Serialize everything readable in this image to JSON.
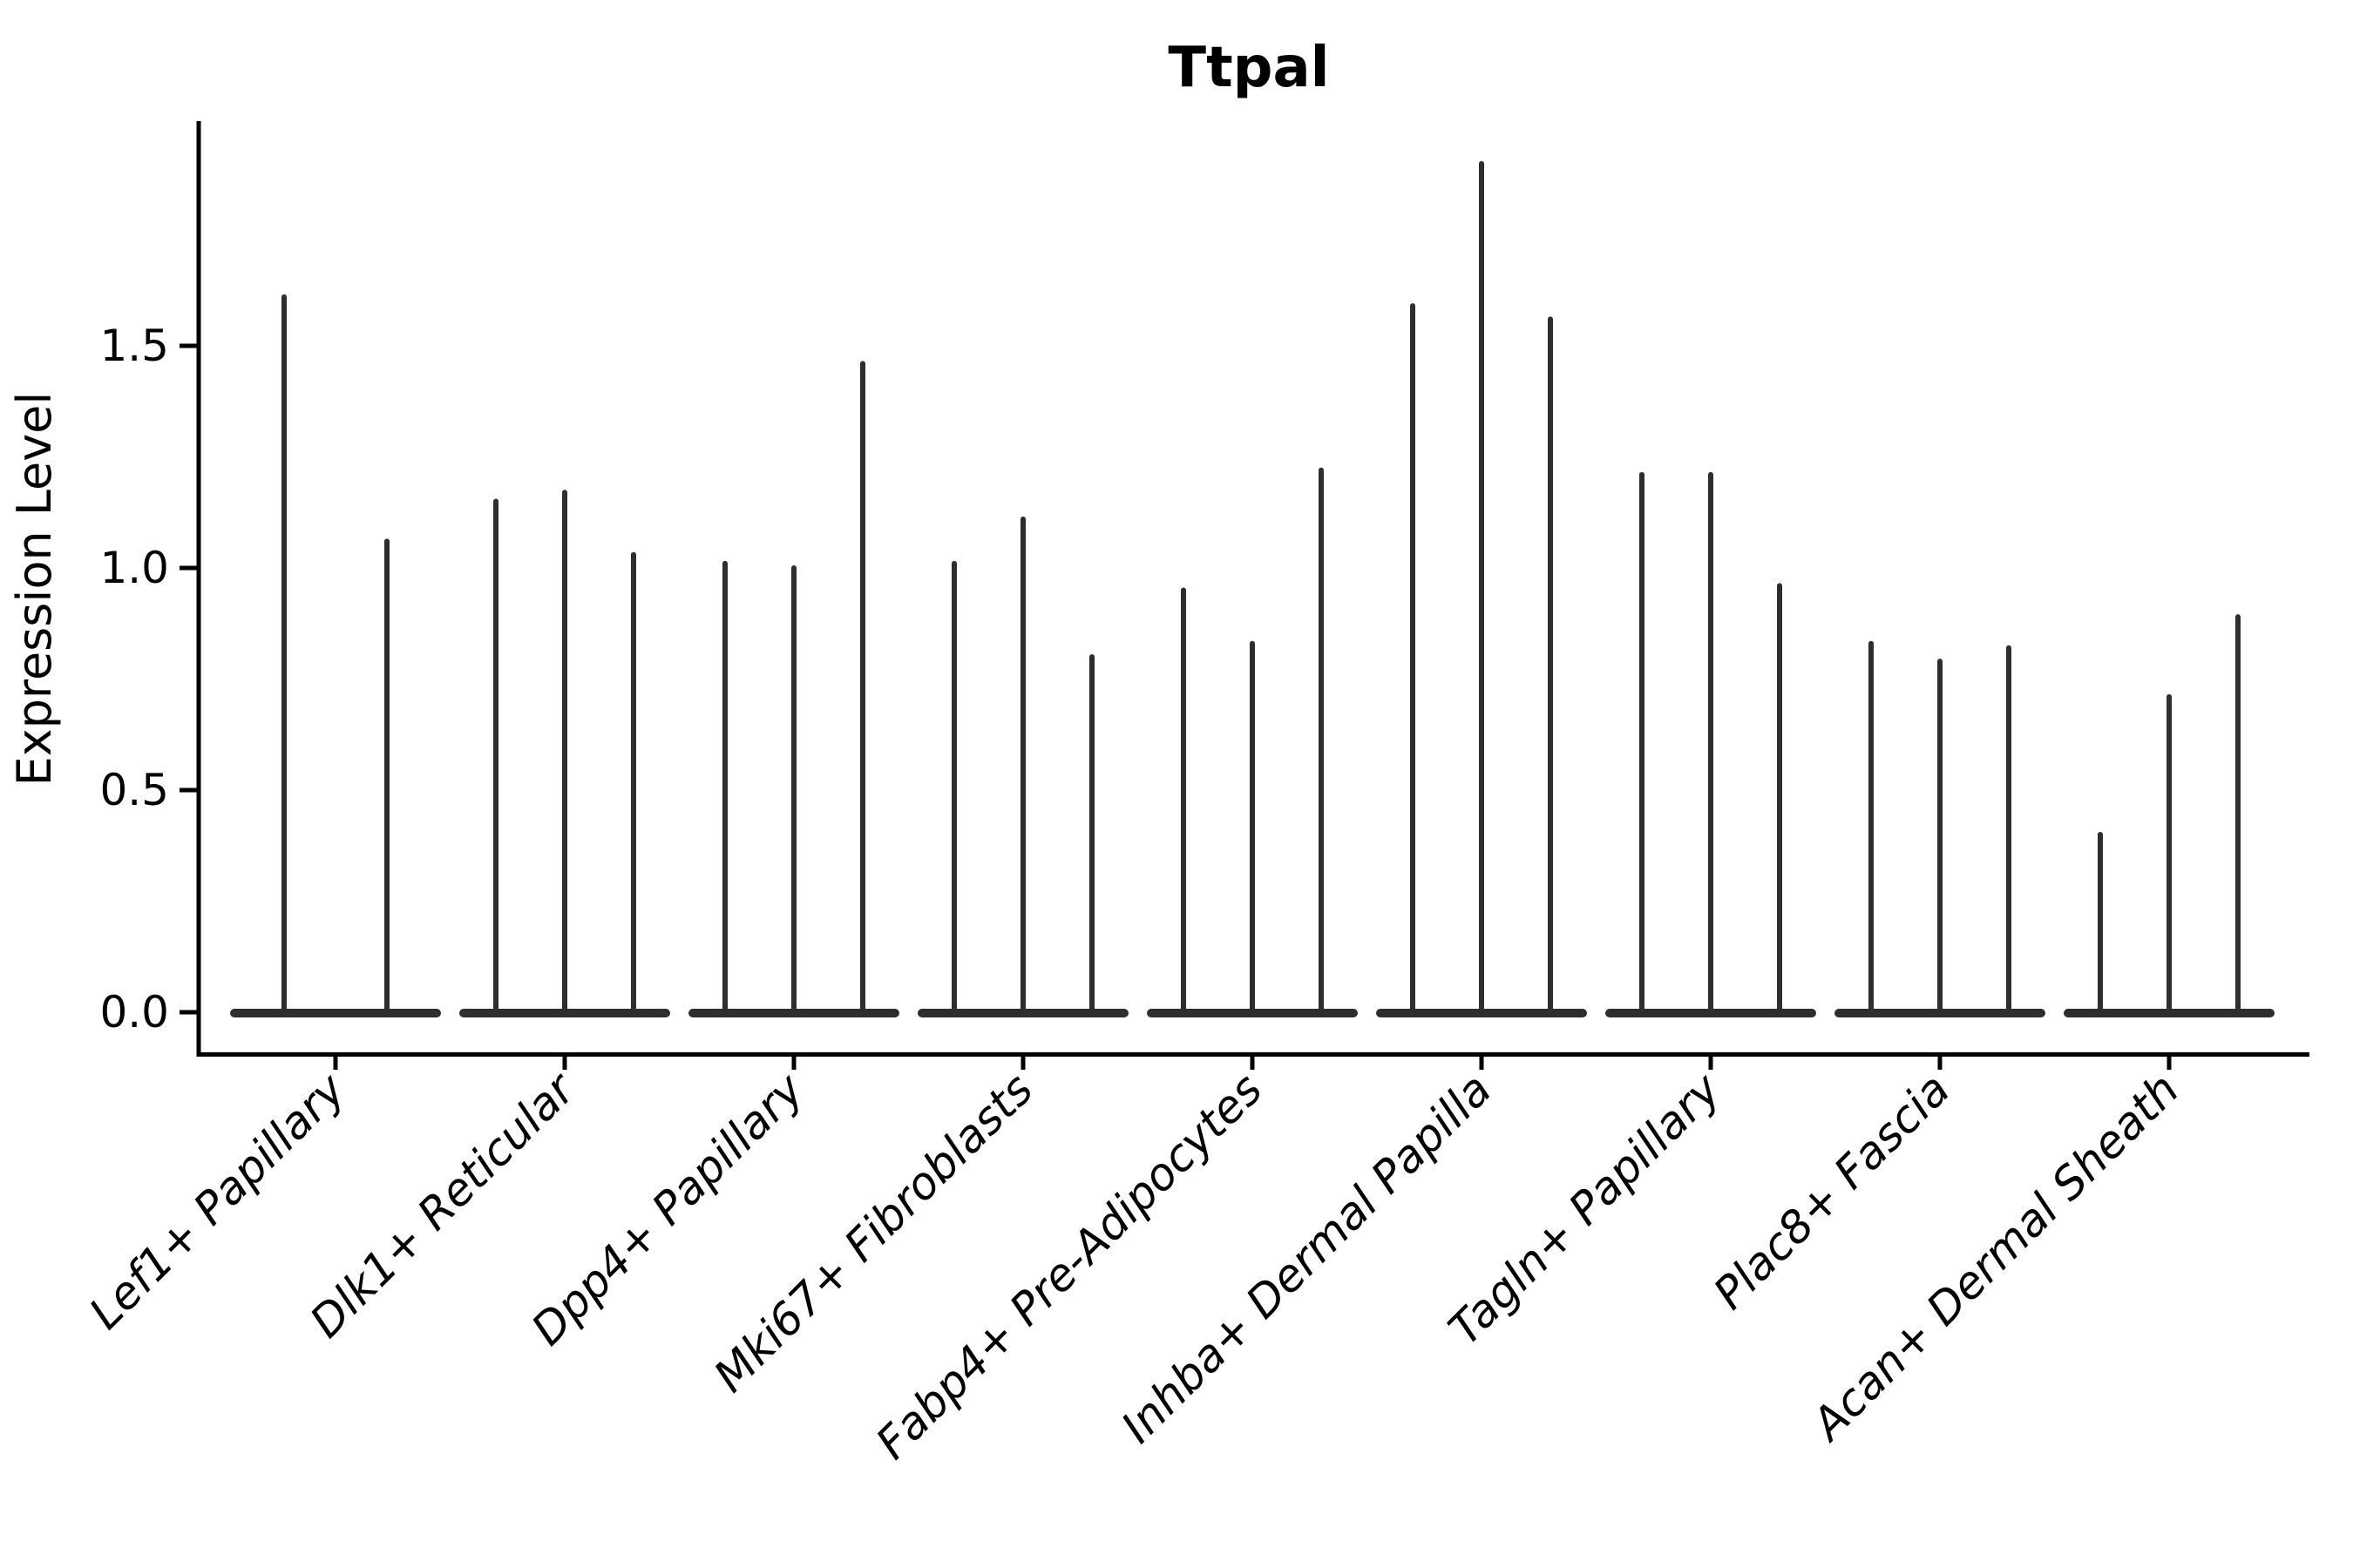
{
  "figure": {
    "background": "#ffffff",
    "ink_color": "#000000",
    "violin_color": "#2e2e2e"
  },
  "chart_data": {
    "type": "violin",
    "title": "Ttpal",
    "ylabel": "Expression Level",
    "xlabel": "",
    "ylim": [
      0,
      2.0
    ],
    "yticks": [
      0.0,
      0.5,
      1.0,
      1.5
    ],
    "ytick_labels": [
      "0.0",
      "0.5",
      "1.0",
      "1.5"
    ],
    "grid": false,
    "legend": "none",
    "categories": [
      "Lef1+ Papillary",
      "Dlk1+ Reticular",
      "Dpp4+ Papillary",
      "Mki67+ Fibroblasts",
      "Fabp4+ Pre-Adipocytes",
      "Inhba+ Dermal Papilla",
      "Tagln+ Papillary",
      "Plac8+ Fascia",
      "Acan+ Dermal Sheath"
    ],
    "groups": [
      {
        "category": "Lef1+ Papillary",
        "violin_max_values": [
          1.61,
          1.06
        ]
      },
      {
        "category": "Dlk1+ Reticular",
        "violin_max_values": [
          1.15,
          1.17,
          1.03
        ]
      },
      {
        "category": "Dpp4+ Papillary",
        "violin_max_values": [
          1.01,
          1.0,
          1.46
        ]
      },
      {
        "category": "Mki67+ Fibroblasts",
        "violin_max_values": [
          1.01,
          1.11,
          0.8
        ]
      },
      {
        "category": "Fabp4+ Pre-Adipocytes",
        "violin_max_values": [
          0.95,
          0.83,
          1.22
        ]
      },
      {
        "category": "Inhba+ Dermal Papilla",
        "violin_max_values": [
          1.59,
          1.91,
          1.56
        ]
      },
      {
        "category": "Tagln+ Papillary",
        "violin_max_values": [
          1.21,
          1.21,
          0.96
        ]
      },
      {
        "category": "Plac8+ Fascia",
        "violin_max_values": [
          0.83,
          0.79,
          0.82
        ]
      },
      {
        "category": "Acan+ Dermal Sheath",
        "violin_max_values": [
          0.4,
          0.71,
          0.89
        ]
      }
    ]
  }
}
